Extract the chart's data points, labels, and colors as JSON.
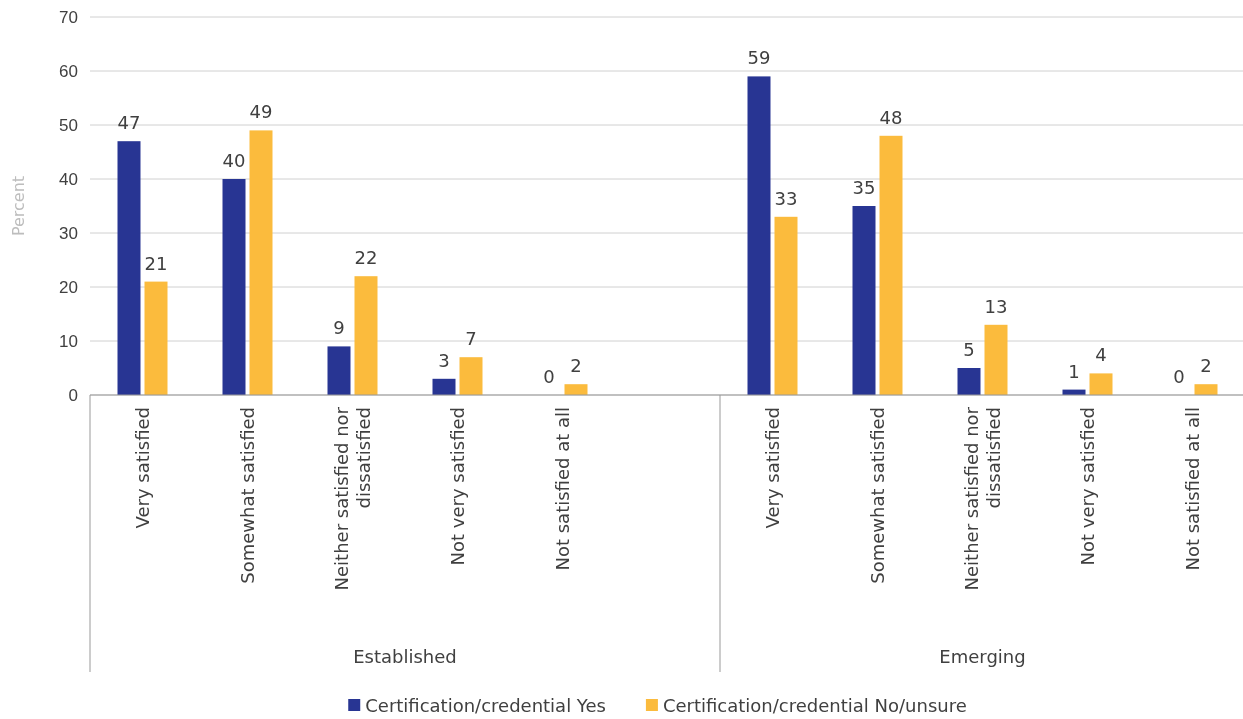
{
  "chart_data": {
    "type": "bar",
    "ylabel": "Percent",
    "categories": [
      "Very satisfied",
      "Somewhat satisfied",
      "Neither satisfied nor dissatisfied",
      "Not very satisfied",
      "Not satisfied at all",
      null,
      "Very satisfied",
      "Somewhat satisfied",
      "Neither satisfied nor dissatisfied",
      "Not very satisfied",
      "Not satisfied at all"
    ],
    "series": [
      {
        "name": "Certification/credential Yes",
        "color": "#283593",
        "values": [
          47,
          40,
          9,
          3,
          0,
          null,
          59,
          35,
          5,
          1,
          0
        ]
      },
      {
        "name": "Certification/credential No/unsure",
        "color": "#fbbb3d",
        "values": [
          21,
          49,
          22,
          7,
          2,
          null,
          33,
          48,
          13,
          4,
          2
        ]
      }
    ],
    "annotations": [
      "Established",
      "Emerging"
    ],
    "ylim": [
      0,
      70
    ],
    "yticks": [
      0,
      10,
      20,
      30,
      40,
      50,
      60,
      70
    ],
    "grid": "y",
    "data_labels": true,
    "legend": "bottom"
  }
}
